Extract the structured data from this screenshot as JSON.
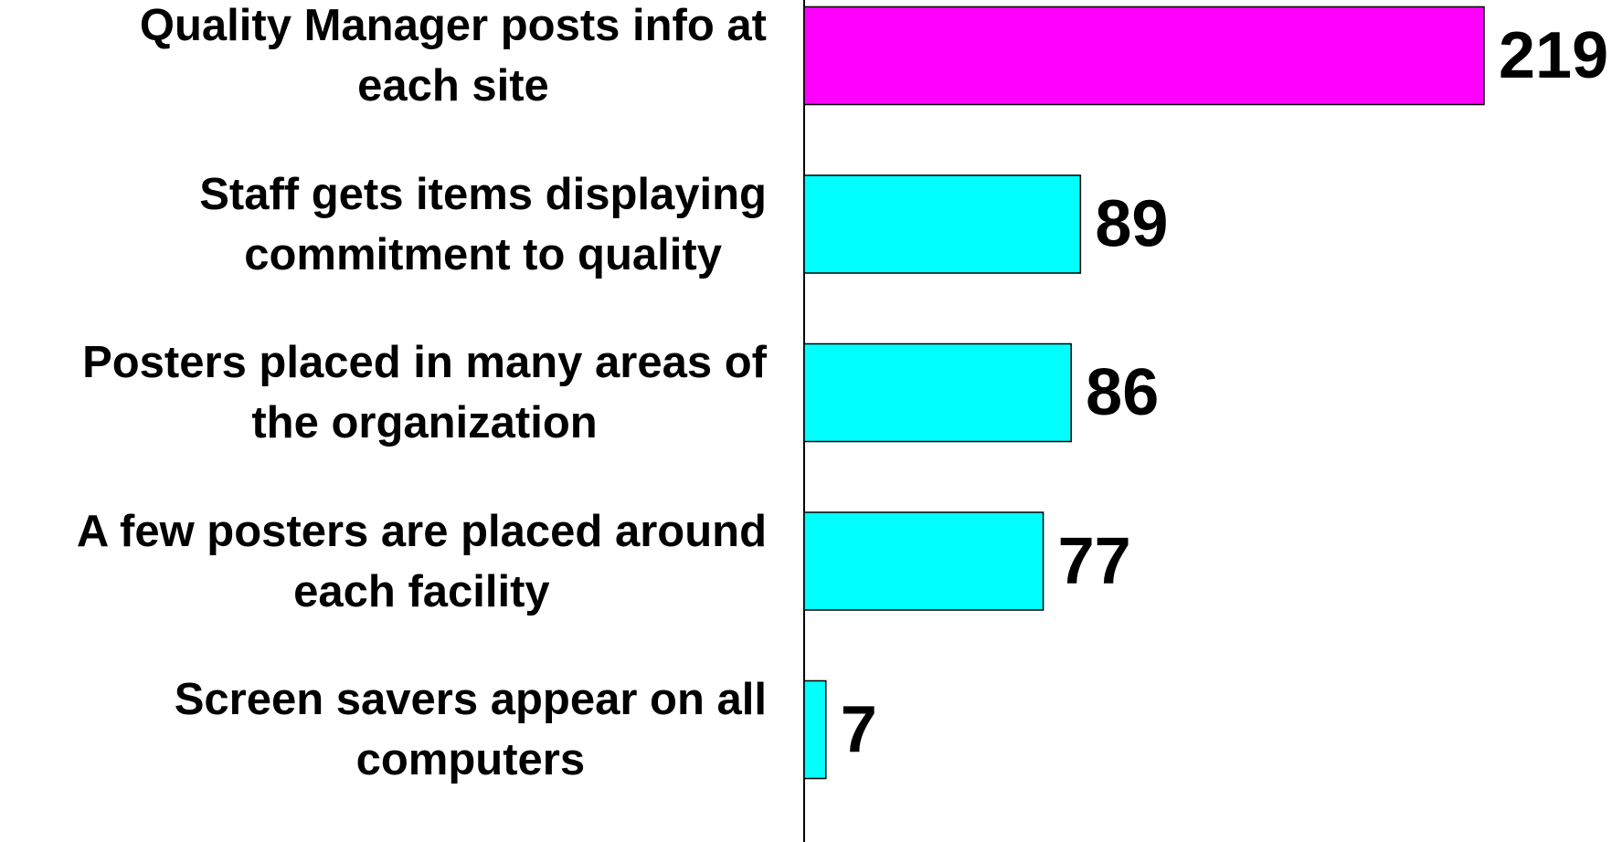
{
  "chart_data": {
    "type": "bar",
    "orientation": "horizontal",
    "categories": [
      "Quality Manager posts info at\neach site",
      "Staff gets items displaying\ncommitment to quality",
      "Posters placed in many areas of\nthe organization",
      "A few posters are placed around\neach facility",
      "Screen savers appear on all\ncomputers"
    ],
    "values": [
      219,
      89,
      86,
      77,
      7
    ],
    "colors": [
      "#ff00ff",
      "#00ffff",
      "#00ffff",
      "#00ffff",
      "#00ffff"
    ]
  }
}
